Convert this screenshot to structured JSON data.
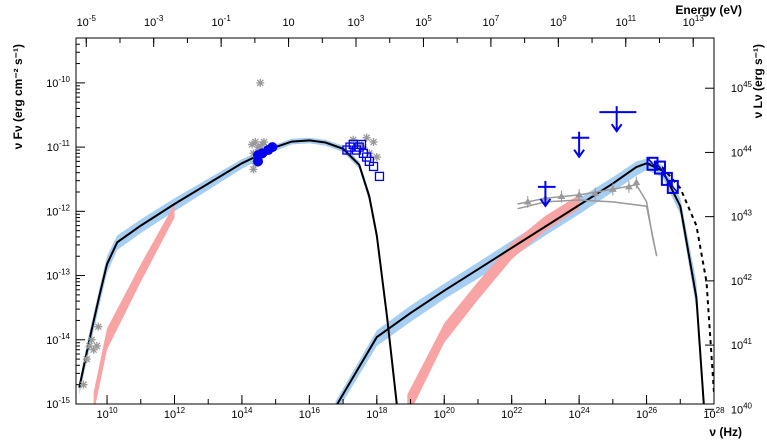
{
  "chart_data": {
    "type": "scatter",
    "title": "",
    "xlabel": "ν (Hz)",
    "ylabel": "ν Fν (erg cm⁻² s⁻¹)",
    "top_axis_label": "Energy (eV)",
    "right_axis_label": "ν Lν (erg s⁻¹)",
    "x_scale": "log",
    "y_scale": "log",
    "xlim": [
      1200000000.0,
      1e+28
    ],
    "ylim": [
      1e-15,
      5e-10
    ],
    "top_ticks": [
      {
        "value": 1e-05,
        "label": "10^-5"
      },
      {
        "value": 0.001,
        "label": "10^-3"
      },
      {
        "value": 0.1,
        "label": "10^-1"
      },
      {
        "value": 10,
        "label": "10"
      },
      {
        "value": 1000.0,
        "label": "10^3"
      },
      {
        "value": 100000.0,
        "label": "10^5"
      },
      {
        "value": 10000000.0,
        "label": "10^7"
      },
      {
        "value": 1000000000.0,
        "label": "10^9"
      },
      {
        "value": 100000000000.0,
        "label": "10^11"
      },
      {
        "value": 10000000000000.0,
        "label": "10^13"
      }
    ],
    "x_ticks": [
      {
        "value": 10000000000.0,
        "label": "10^10"
      },
      {
        "value": 1000000000000.0,
        "label": "10^12"
      },
      {
        "value": 100000000000000.0,
        "label": "10^14"
      },
      {
        "value": 1e+16,
        "label": "10^16"
      },
      {
        "value": 1e+18,
        "label": "10^18"
      },
      {
        "value": 1e+20,
        "label": "10^20"
      },
      {
        "value": 1e+22,
        "label": "10^22"
      },
      {
        "value": 1e+24,
        "label": "10^24"
      },
      {
        "value": 1e+26,
        "label": "10^26"
      },
      {
        "value": 1e+28,
        "label": "10^28"
      }
    ],
    "y_ticks": [
      {
        "value": 1e-15,
        "label": "10^-15"
      },
      {
        "value": 1e-14,
        "label": "10^-14"
      },
      {
        "value": 1e-13,
        "label": "10^-13"
      },
      {
        "value": 1e-12,
        "label": "10^-12"
      },
      {
        "value": 1e-11,
        "label": "10^-11"
      },
      {
        "value": 1e-10,
        "label": "10^-10"
      }
    ],
    "right_ticks": [
      {
        "value": 1e+40,
        "label": "10^40"
      },
      {
        "value": 1e+41,
        "label": "10^41"
      },
      {
        "value": 1e+42,
        "label": "10^42"
      },
      {
        "value": 1e+43,
        "label": "10^43"
      },
      {
        "value": 1e+44,
        "label": "10^44"
      },
      {
        "value": 1e+45,
        "label": "10^45"
      }
    ],
    "series": [
      {
        "kind": "band",
        "color": "#a6cdf2",
        "points": [
          [
            1500000000.0,
            2.2e-15,
            1.4e-15
          ],
          [
            3000000000.0,
            1.3e-14,
            7e-15
          ],
          [
            6000000000.0,
            6.5e-14,
            3.5e-14
          ],
          [
            10000000000.0,
            2e-13,
            1.1e-13
          ],
          [
            20000000000.0,
            4.2e-13,
            2.5e-13
          ],
          [
            100000000000.0,
            7.5e-13,
            4.6e-13
          ],
          [
            1000000000000.0,
            1.6e-12,
            1e-12
          ],
          [
            100000000000000.0,
            6.5e-12,
            4.6e-12
          ],
          [
            1000000000000000.0,
            1.1e-11,
            8.8e-12
          ],
          [
            3000000000000000.0,
            1.35e-11,
            1.1e-11
          ],
          [
            1e+16,
            1.4e-11,
            1.15e-11
          ],
          [
            3e+16,
            1.3e-11,
            1.05e-11
          ],
          [
            1e+17,
            1.05e-11,
            8.4e-12
          ],
          [
            3e+17,
            6e-12,
            4.6e-12
          ],
          [
            6e+17,
            2e-12,
            1.4e-12
          ],
          [
            1e+18,
            5e-13,
            3.4e-13
          ],
          [
            2e+18,
            3e-14,
            1.8e-14
          ],
          [
            4e+18,
            1.2e-15,
            7e-16
          ]
        ]
      },
      {
        "kind": "band",
        "color": "#a6cdf2",
        "points": [
          [
            6e+16,
            1.1e-15,
            7e-16
          ],
          [
            1e+18,
            1.4e-14,
            8e-15
          ],
          [
            1e+19,
            3.4e-14,
            1.9e-14
          ],
          [
            1e+20,
            7.5e-14,
            4.3e-14
          ],
          [
            1e+21,
            1.6e-13,
            9e-14
          ],
          [
            1e+22,
            3.5e-13,
            1.9e-13
          ],
          [
            1e+23,
            7.5e-13,
            4.2e-13
          ],
          [
            1e+24,
            1.6e-12,
            9e-13
          ],
          [
            1e+25,
            3.4e-12,
            2e-12
          ],
          [
            5e+25,
            6e-12,
            3.6e-12
          ],
          [
            1e+26,
            6.6e-12,
            4.4e-12
          ],
          [
            3e+26,
            5.2e-12,
            3.4e-12
          ],
          [
            1e+27,
            1.6e-12,
            9e-13
          ],
          [
            3e+27,
            8e-14,
            3e-14
          ],
          [
            5e+27,
            1.5e-15,
            7e-16
          ]
        ]
      },
      {
        "kind": "band",
        "color": "#f9a4a4",
        "points": [
          [
            4000000000.0,
            1.5e-15,
            7e-16
          ],
          [
            10000000000.0,
            1.5e-14,
            7e-15
          ],
          [
            100000000000.0,
            1.5e-13,
            8e-14
          ],
          [
            1000000000000.0,
            1.3e-12,
            8e-13
          ]
        ]
      },
      {
        "kind": "band",
        "color": "#f9a4a4",
        "points": [
          [
            8e+18,
            1.4e-15,
            6e-16
          ],
          [
            1e+20,
            1.8e-14,
            9e-15
          ],
          [
            1e+21,
            8e-14,
            4.2e-14
          ],
          [
            1e+22,
            3.2e-13,
            1.8e-13
          ],
          [
            1e+23,
            8.5e-13,
            5e-13
          ],
          [
            1e+24,
            1.8e-12,
            1.1e-12
          ]
        ]
      },
      {
        "kind": "line",
        "color": "#000000",
        "dash": false,
        "points": [
          [
            1500000000.0,
            1.8e-15
          ],
          [
            3000000000.0,
            1e-14
          ],
          [
            6000000000.0,
            5e-14
          ],
          [
            10000000000.0,
            1.5e-13
          ],
          [
            20000000000.0,
            3.3e-13
          ],
          [
            100000000000.0,
            6e-13
          ],
          [
            1000000000000.0,
            1.3e-12
          ],
          [
            100000000000000.0,
            5.6e-12
          ],
          [
            1000000000000000.0,
            1e-11
          ],
          [
            3000000000000000.0,
            1.22e-11
          ],
          [
            1e+16,
            1.27e-11
          ],
          [
            3e+16,
            1.18e-11
          ],
          [
            1e+17,
            9.4e-12
          ],
          [
            3e+17,
            5.3e-12
          ],
          [
            6e+17,
            1.7e-12
          ],
          [
            1e+18,
            4.2e-13
          ],
          [
            2e+18,
            2.3e-14
          ],
          [
            4e+18,
            9e-16
          ]
        ]
      },
      {
        "kind": "line",
        "color": "#000000",
        "dash": false,
        "points": [
          [
            6e+16,
            9e-16
          ],
          [
            1e+18,
            1.1e-14
          ],
          [
            1e+19,
            2.6e-14
          ],
          [
            1e+20,
            5.8e-14
          ],
          [
            1e+21,
            1.25e-13
          ],
          [
            1e+22,
            2.7e-13
          ],
          [
            1e+23,
            5.8e-13
          ],
          [
            1e+24,
            1.25e-12
          ],
          [
            1e+25,
            2.7e-12
          ],
          [
            5e+25,
            4.9e-12
          ],
          [
            1e+26,
            5.6e-12
          ],
          [
            3e+26,
            4.3e-12
          ],
          [
            1e+27,
            1.2e-12
          ],
          [
            3e+27,
            4.5e-14
          ],
          [
            5e+27,
            1e-15
          ]
        ]
      },
      {
        "kind": "line",
        "color": "#000000",
        "dash": true,
        "points": [
          [
            1e+26,
            5.6e-12
          ],
          [
            3e+26,
            4.8e-12
          ],
          [
            1e+27,
            2.3e-12
          ],
          [
            3e+27,
            6e-13
          ],
          [
            6e+27,
            8e-14
          ],
          [
            1e+28,
            1.5e-15
          ]
        ]
      },
      {
        "kind": "line",
        "color": "#999999",
        "dash": false,
        "points": [
          [
            1.5e+22,
            1.3e-12
          ],
          [
            1e+23,
            1.6e-12
          ],
          [
            1e+24,
            1.8e-12
          ],
          [
            1e+25,
            2.2e-12
          ],
          [
            5e+25,
            2.6e-12
          ],
          [
            1e+26,
            1.4e-12
          ],
          [
            1.5e+26,
            4e-13
          ],
          [
            2e+26,
            2e-13
          ],
          [
            1e+26,
            1.2e-12
          ],
          [
            1e+25,
            1.4e-12
          ],
          [
            1e+24,
            1.5e-12
          ],
          [
            1e+23,
            1.4e-12
          ],
          [
            1.5e+22,
            1.1e-12
          ]
        ]
      },
      {
        "kind": "points",
        "marker": "star",
        "color": "#999999",
        "points": [
          [
            2000000000.0,
            2e-15
          ],
          [
            2500000000.0,
            5e-15
          ],
          [
            3500000000.0,
            1e-14
          ],
          [
            4000000000.0,
            7e-15
          ],
          [
            5000000000.0,
            8e-15
          ],
          [
            5500000000.0,
            1.6e-14
          ],
          [
            3000000000.0,
            8e-15
          ],
          [
            200000000000000.0,
            1.1e-11
          ],
          [
            220000000000000.0,
            8e-12
          ],
          [
            250000000000000.0,
            1.2e-11
          ],
          [
            280000000000000.0,
            7e-12
          ],
          [
            300000000000000.0,
            1e-11
          ],
          [
            350000000000000.0,
            9e-12
          ],
          [
            400000000000000.0,
            1.1e-11
          ],
          [
            250000000000000.0,
            5.5e-12
          ],
          [
            300000000000000.0,
            6e-12
          ],
          [
            450000000000000.0,
            1.2e-11
          ],
          [
            220000000000000.0,
            4.5e-12
          ],
          [
            350000000000000.0,
            1e-10
          ],
          [
            2e+17,
            1.3e-11
          ],
          [
            3e+17,
            1.1e-11
          ],
          [
            4e+17,
            1e-11
          ],
          [
            5e+17,
            1.4e-11
          ],
          [
            6e+17,
            8e-12
          ],
          [
            8e+17,
            1.2e-11
          ],
          [
            1e+18,
            7e-12
          ]
        ]
      },
      {
        "kind": "points",
        "marker": "triangle",
        "color": "#999999",
        "points": [
          [
            3e+22,
            1.4e-12
          ],
          [
            1e+23,
            1.6e-12
          ],
          [
            3e+23,
            1.7e-12
          ],
          [
            1e+24,
            1.8e-12
          ],
          [
            3e+24,
            1.9e-12
          ],
          [
            1e+25,
            2.2e-12
          ],
          [
            3e+25,
            2.4e-12
          ],
          [
            5e+25,
            2.8e-12
          ]
        ]
      },
      {
        "kind": "points",
        "marker": "circle",
        "color": "#0000ee",
        "points": [
          [
            300000000000000.0,
            6e-12
          ],
          [
            400000000000000.0,
            8e-12
          ],
          [
            600000000000000.0,
            9e-12
          ],
          [
            800000000000000.0,
            1e-11
          ],
          [
            300000000000000.0,
            7.5e-12
          ]
        ]
      },
      {
        "kind": "points",
        "marker": "square",
        "color": "#0000ee",
        "points": [
          [
            1.3e+17,
            9e-12
          ],
          [
            1.6e+17,
            1e-11
          ],
          [
            2e+17,
            1.1e-11
          ],
          [
            2.5e+17,
            9e-12
          ],
          [
            3e+17,
            1e-11
          ],
          [
            4e+17,
            8e-12
          ],
          [
            5e+17,
            7e-12
          ],
          [
            6e+17,
            6e-12
          ],
          [
            8e+17,
            5e-12
          ],
          [
            1.2e+18,
            3.5e-12
          ],
          [
            3.5e+17,
            1.1e-11
          ]
        ]
      },
      {
        "kind": "points",
        "marker": "ul-cross",
        "color": "#0000ee",
        "points": [
          [
            1e+23,
            2.4e-12,
            6e+22,
            2e+23
          ],
          [
            1e+24,
            1.4e-11,
            6e+23,
            2e+24
          ],
          [
            1.3e+25,
            3.5e-11,
            4e+24,
            5e+25
          ]
        ]
      },
      {
        "kind": "points",
        "marker": "butterfly",
        "color": "#0000ee",
        "points": [
          [
            1.5e+26,
            5.5e-12
          ],
          [
            2.5e+26,
            4.8e-12
          ],
          [
            4e+26,
            3.2e-12
          ],
          [
            6e+26,
            2.4e-12
          ]
        ]
      }
    ]
  }
}
